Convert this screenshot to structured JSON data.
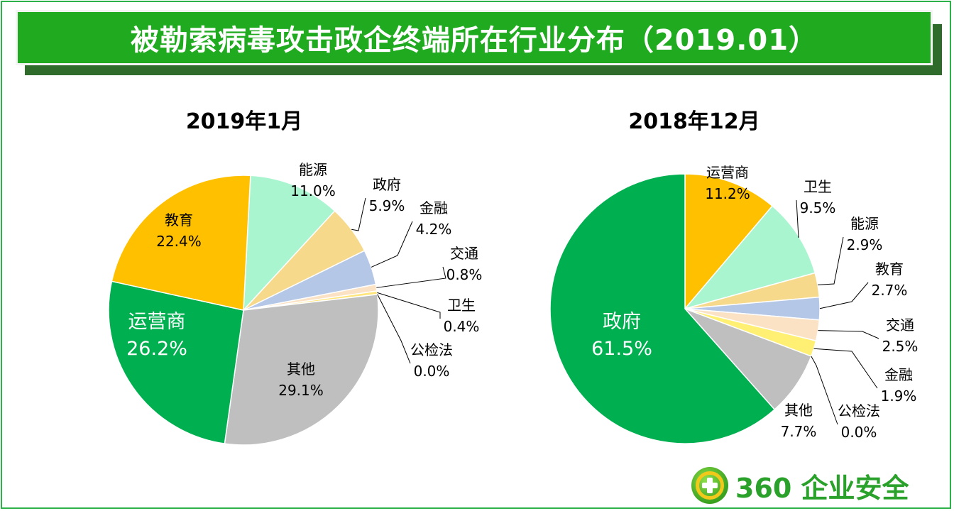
{
  "banner": {
    "title": "被勒索病毒攻击政企终端所在行业分布（2019.01）"
  },
  "logo": {
    "text": "360 企业安全",
    "icon": "360-plus-logo-icon"
  },
  "colors": {
    "banner": "#1faa1f",
    "运营商": "#00b050",
    "其他": "#bfbfbf",
    "教育": "#ffc000",
    "能源": "#a9f5d0",
    "政府": "#f7d98c",
    "金融": "#b4c7e7",
    "交通": "#fbe2c4",
    "卫生": "#ffe57a",
    "公检法": "#f4b183"
  },
  "chart_data": [
    {
      "type": "pie",
      "title": "2019年1月",
      "slices": [
        {
          "name": "能源",
          "value": 11.0,
          "label": "11.0%",
          "color": "#a9f5d0"
        },
        {
          "name": "政府",
          "value": 5.9,
          "label": "5.9%",
          "color": "#f7d98c"
        },
        {
          "name": "金融",
          "value": 4.2,
          "label": "4.2%",
          "color": "#b4c7e7"
        },
        {
          "name": "交通",
          "value": 0.8,
          "label": "0.8%",
          "color": "#fbe2c4"
        },
        {
          "name": "卫生",
          "value": 0.4,
          "label": "0.4%",
          "color": "#ffe57a"
        },
        {
          "name": "公检法",
          "value": 0.0,
          "label": "0.0%",
          "color": "#f4b183"
        },
        {
          "name": "其他",
          "value": 29.1,
          "label": "29.1%",
          "color": "#bfbfbf"
        },
        {
          "name": "运营商",
          "value": 26.2,
          "label": "26.2%",
          "color": "#00b050"
        },
        {
          "name": "教育",
          "value": 22.4,
          "label": "22.4%",
          "color": "#ffc000"
        }
      ]
    },
    {
      "type": "pie",
      "title": "2018年12月",
      "slices": [
        {
          "name": "运营商",
          "value": 11.2,
          "label": "11.2%",
          "color": "#ffc000"
        },
        {
          "name": "卫生",
          "value": 9.5,
          "label": "9.5%",
          "color": "#a9f5d0"
        },
        {
          "name": "能源",
          "value": 2.9,
          "label": "2.9%",
          "color": "#f7d98c"
        },
        {
          "name": "教育",
          "value": 2.7,
          "label": "2.7%",
          "color": "#b4c7e7"
        },
        {
          "name": "交通",
          "value": 2.5,
          "label": "2.5%",
          "color": "#fbe2c4"
        },
        {
          "name": "金融",
          "value": 1.9,
          "label": "1.9%",
          "color": "#ffef73"
        },
        {
          "name": "公检法",
          "value": 0.0,
          "label": "0.0%",
          "color": "#f4b183"
        },
        {
          "name": "其他",
          "value": 7.7,
          "label": "7.7%",
          "color": "#bfbfbf"
        },
        {
          "name": "政府",
          "value": 61.5,
          "label": "61.5%",
          "color": "#00b050"
        }
      ]
    }
  ]
}
